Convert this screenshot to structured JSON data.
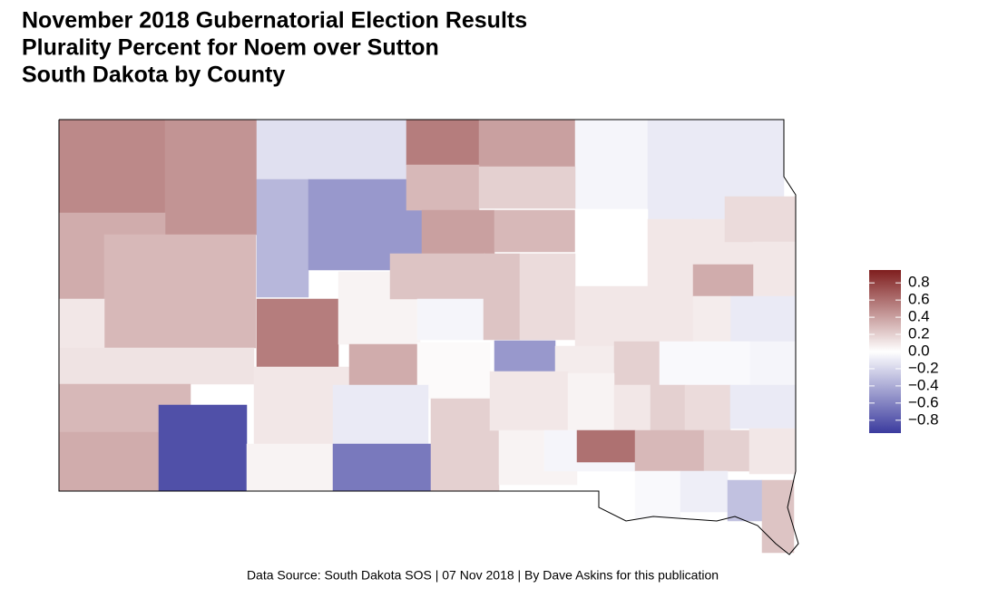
{
  "chart_data": {
    "type": "choropleth",
    "title": [
      "November 2018 Gubernatorial Election Results",
      "Plurality Percent for Noem over Sutton",
      "South Dakota by County"
    ],
    "caption": "Data Source: South Dakota SOS | 07 Nov 2018 | By Dave Askins for this publication",
    "colors": [
      "#3b3b9e",
      "#ffffff",
      "#7f1e1e"
    ],
    "scale_lim": [
      -0.95,
      0.95
    ],
    "scale_ticks": [
      0.8,
      0.6,
      0.4,
      0.2,
      {
        "value": 0,
        "label": "0.0"
      },
      {
        "value": -0.2,
        "label": "−0.2"
      },
      {
        "value": -0.4,
        "label": "−0.4"
      },
      {
        "value": -0.6,
        "label": "−0.6"
      },
      {
        "value": -0.8,
        "label": "−0.8"
      }
    ],
    "values": [
      0.5,
      0.45,
      -0.15,
      0.55,
      0.4,
      -0.05,
      -0.1,
      -0.1,
      0.35,
      0.3,
      -0.35,
      -0.5,
      0.3,
      0.2,
      -0.1,
      0.4,
      0.3,
      0.0,
      0.1,
      0.1,
      0.15,
      0.1,
      0.1,
      0.12,
      0.55,
      0.05,
      0.25,
      -0.05,
      0.25,
      0.15,
      0.1,
      0.1,
      0.35,
      -0.1,
      0.08,
      0.3,
      0.35,
      -0.85,
      0.1,
      0.35,
      0.02,
      -0.5,
      0.08,
      0.2,
      -0.03,
      -0.03,
      -0.05,
      0.05,
      -0.1,
      -0.65,
      0.2,
      0.1,
      0.05,
      0.1,
      0.2,
      0.15,
      -0.1,
      0.05,
      -0.05,
      0.6,
      0.3,
      0.2,
      0.1,
      -0.03,
      -0.08,
      -0.3,
      0.25
    ]
  }
}
